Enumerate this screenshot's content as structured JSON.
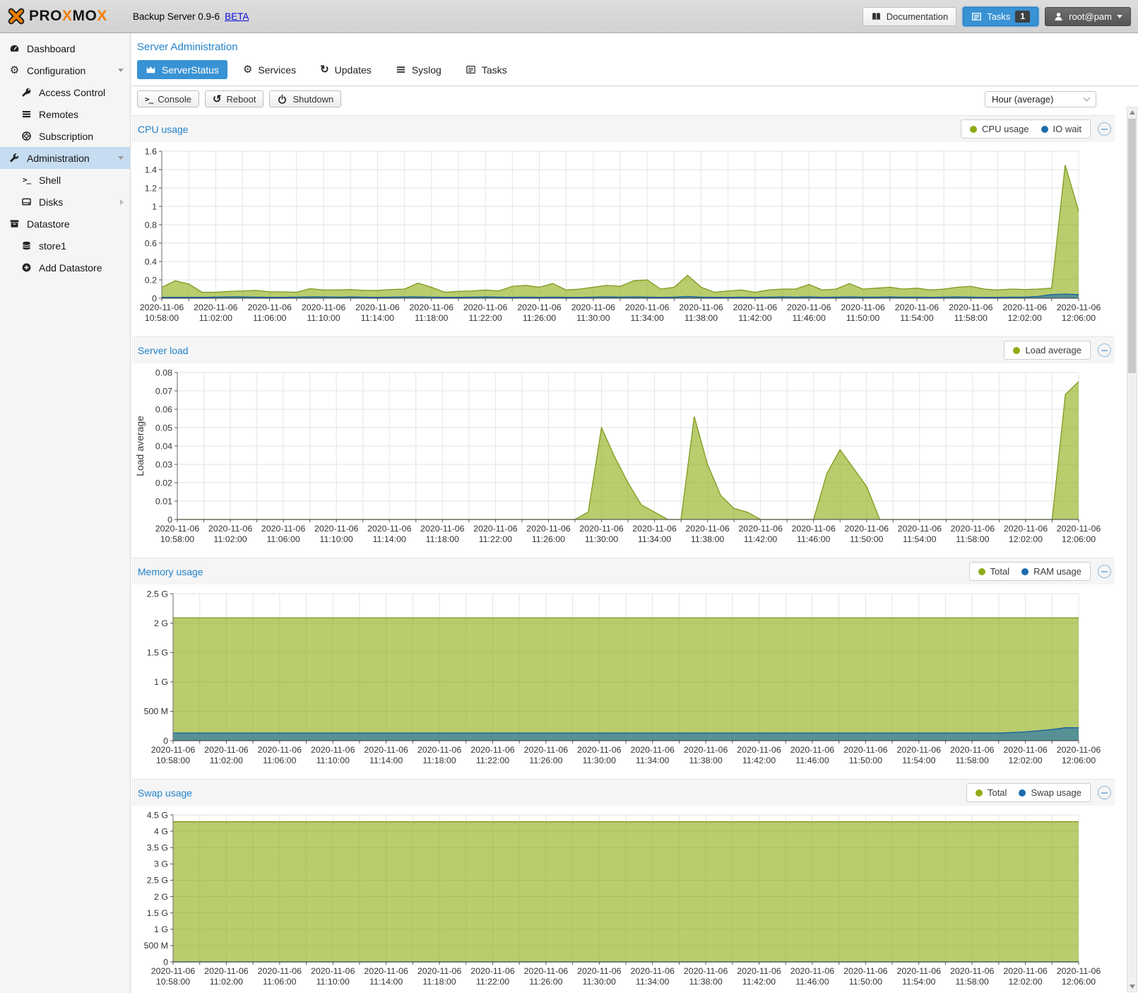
{
  "colors": {
    "accent": "#3892d4",
    "title_blue": "#2383ca",
    "sidebar_sel": "#c6dcf1"
  },
  "icons": {
    "terminal_prompt": ">_",
    "refresh": "↻",
    "undo": "↺",
    "gear": "⚙"
  },
  "header": {
    "logo_parts": [
      "PRO",
      "X",
      "MO",
      "X"
    ],
    "product": "Backup Server 0.9-6",
    "beta": "BETA",
    "documentation": "Documentation",
    "tasks": "Tasks",
    "tasks_badge": "1",
    "user": "root@pam"
  },
  "sidebar": {
    "items": [
      {
        "label": "Dashboard"
      },
      {
        "label": "Configuration"
      },
      {
        "label": "Access Control"
      },
      {
        "label": "Remotes"
      },
      {
        "label": "Subscription"
      },
      {
        "label": "Administration"
      },
      {
        "label": "Shell"
      },
      {
        "label": "Disks"
      },
      {
        "label": "Datastore"
      },
      {
        "label": "store1"
      },
      {
        "label": "Add Datastore"
      }
    ]
  },
  "main": {
    "title": "Server Administration",
    "tabs": [
      {
        "label": "ServerStatus"
      },
      {
        "label": "Services"
      },
      {
        "label": "Updates"
      },
      {
        "label": "Syslog"
      },
      {
        "label": "Tasks"
      }
    ],
    "toolbar": {
      "console": "Console",
      "reboot": "Reboot",
      "shutdown": "Shutdown",
      "range_select": "Hour (average)"
    }
  },
  "chart_data": [
    {
      "type": "area",
      "title": "CPU usage",
      "legend": [
        "CPU usage",
        "IO wait"
      ],
      "ylabel": "",
      "ylim": [
        0,
        1.6
      ],
      "grid": true,
      "legend_position": "top-right",
      "yticks": [
        {
          "v": 1.6,
          "label": "1.6"
        },
        {
          "v": 1.4,
          "label": "1.4"
        },
        {
          "v": 1.2,
          "label": "1.2"
        },
        {
          "v": 1,
          "label": "1"
        },
        {
          "v": 0.8,
          "label": "0.8"
        },
        {
          "v": 0.6,
          "label": "0.6"
        },
        {
          "v": 0.4,
          "label": "0.4"
        },
        {
          "v": 0.2,
          "label": "0.2"
        },
        {
          "v": 0,
          "label": "0"
        }
      ],
      "x_date": "2020-11-06",
      "x_times": [
        "10:58:00",
        "11:02:00",
        "11:06:00",
        "11:10:00",
        "11:14:00",
        "11:18:00",
        "11:22:00",
        "11:26:00",
        "11:30:00",
        "11:34:00",
        "11:38:00",
        "11:42:00",
        "11:46:00",
        "11:50:00",
        "11:54:00",
        "11:58:00",
        "12:02:00",
        "12:06:00"
      ],
      "series": [
        {
          "name": "CPU usage",
          "color": "#8eac15",
          "line": "#7e9a1d",
          "fill_opacity": 0.62,
          "values": [
            0.12,
            0.19,
            0.155,
            0.065,
            0.065,
            0.075,
            0.08,
            0.085,
            0.07,
            0.07,
            0.065,
            0.105,
            0.09,
            0.09,
            0.095,
            0.085,
            0.085,
            0.095,
            0.1,
            0.165,
            0.12,
            0.065,
            0.075,
            0.08,
            0.09,
            0.08,
            0.13,
            0.14,
            0.12,
            0.16,
            0.09,
            0.1,
            0.12,
            0.14,
            0.13,
            0.19,
            0.2,
            0.1,
            0.12,
            0.25,
            0.12,
            0.065,
            0.08,
            0.09,
            0.065,
            0.09,
            0.1,
            0.1,
            0.15,
            0.09,
            0.1,
            0.16,
            0.1,
            0.11,
            0.12,
            0.1,
            0.11,
            0.09,
            0.1,
            0.12,
            0.13,
            0.1,
            0.09,
            0.1,
            0.095,
            0.1,
            0.11,
            1.45,
            0.95
          ]
        },
        {
          "name": "IO wait",
          "color": "#1c6bac",
          "line": "#17629f",
          "fill_opacity": 0.62,
          "values": [
            0.01,
            0.01,
            0.01,
            0.01,
            0.012,
            0.015,
            0.015,
            0.012,
            0.01,
            0.01,
            0.012,
            0.015,
            0.015,
            0.012,
            0.015,
            0.012,
            0.01,
            0.012,
            0.015,
            0.015,
            0.012,
            0.01,
            0.01,
            0.012,
            0.015,
            0.012,
            0.01,
            0.012,
            0.01,
            0.012,
            0.01,
            0.01,
            0.012,
            0.015,
            0.012,
            0.015,
            0.012,
            0.01,
            0.012,
            0.02,
            0.012,
            0.01,
            0.01,
            0.012,
            0.01,
            0.012,
            0.015,
            0.012,
            0.015,
            0.01,
            0.012,
            0.015,
            0.012,
            0.012,
            0.015,
            0.012,
            0.012,
            0.01,
            0.012,
            0.015,
            0.012,
            0.01,
            0.01,
            0.012,
            0.012,
            0.02,
            0.04,
            0.045,
            0.04
          ]
        }
      ]
    },
    {
      "type": "area",
      "title": "Server load",
      "legend": [
        "Load average"
      ],
      "ylabel": "Load average",
      "ylim": [
        0,
        0.08
      ],
      "grid": true,
      "legend_position": "top-right",
      "yticks": [
        {
          "v": 0.08,
          "label": "0.08"
        },
        {
          "v": 0.07,
          "label": "0.07"
        },
        {
          "v": 0.06,
          "label": "0.06"
        },
        {
          "v": 0.05,
          "label": "0.05"
        },
        {
          "v": 0.04,
          "label": "0.04"
        },
        {
          "v": 0.03,
          "label": "0.03"
        },
        {
          "v": 0.02,
          "label": "0.02"
        },
        {
          "v": 0.01,
          "label": "0.01"
        },
        {
          "v": 0,
          "label": "0"
        }
      ],
      "x_date": "2020-11-06",
      "x_times": [
        "10:58:00",
        "11:02:00",
        "11:06:00",
        "11:10:00",
        "11:14:00",
        "11:18:00",
        "11:22:00",
        "11:26:00",
        "11:30:00",
        "11:34:00",
        "11:38:00",
        "11:42:00",
        "11:46:00",
        "11:50:00",
        "11:54:00",
        "11:58:00",
        "12:02:00",
        "12:06:00"
      ],
      "series": [
        {
          "name": "Load average",
          "color": "#8eac15",
          "line": "#7e9a1d",
          "fill_opacity": 0.62,
          "values": [
            0,
            0,
            0,
            0,
            0,
            0,
            0,
            0,
            0,
            0,
            0,
            0,
            0,
            0,
            0,
            0,
            0,
            0,
            0,
            0,
            0,
            0,
            0,
            0,
            0,
            0,
            0,
            0,
            0,
            0,
            0,
            0.004,
            0.05,
            0.034,
            0.02,
            0.008,
            0.004,
            0,
            0,
            0.056,
            0.03,
            0.013,
            0.006,
            0.004,
            0,
            0,
            0,
            0,
            0,
            0.025,
            0.038,
            0.028,
            0.018,
            0,
            0,
            0,
            0,
            0,
            0,
            0,
            0,
            0,
            0,
            0,
            0,
            0,
            0,
            0.068,
            0.075
          ]
        }
      ]
    },
    {
      "type": "area",
      "title": "Memory usage",
      "legend": [
        "Total",
        "RAM usage"
      ],
      "ylabel": "",
      "ylim": [
        0,
        2.5
      ],
      "grid": true,
      "legend_position": "top-right",
      "yticks": [
        {
          "v": 2.5,
          "label": "2.5 G"
        },
        {
          "v": 2,
          "label": "2 G"
        },
        {
          "v": 1.5,
          "label": "1.5 G"
        },
        {
          "v": 1,
          "label": "1 G"
        },
        {
          "v": 0.5,
          "label": "500 M"
        },
        {
          "v": 0,
          "label": "0"
        }
      ],
      "x_date": "2020-11-06",
      "x_times": [
        "10:58:00",
        "11:02:00",
        "11:06:00",
        "11:10:00",
        "11:14:00",
        "11:18:00",
        "11:22:00",
        "11:26:00",
        "11:30:00",
        "11:34:00",
        "11:38:00",
        "11:42:00",
        "11:46:00",
        "11:50:00",
        "11:54:00",
        "11:58:00",
        "12:02:00",
        "12:06:00"
      ],
      "series": [
        {
          "name": "Total",
          "color": "#8eac15",
          "line": "#7e9a1d",
          "fill_opacity": 0.62,
          "values": [
            2.09,
            2.09,
            2.09,
            2.09,
            2.09,
            2.09,
            2.09,
            2.09,
            2.09,
            2.09,
            2.09,
            2.09,
            2.09,
            2.09,
            2.09,
            2.09,
            2.09,
            2.09,
            2.09,
            2.09,
            2.09,
            2.09,
            2.09,
            2.09,
            2.09,
            2.09,
            2.09,
            2.09,
            2.09,
            2.09,
            2.09,
            2.09,
            2.09,
            2.09,
            2.09,
            2.09,
            2.09,
            2.09,
            2.09,
            2.09,
            2.09,
            2.09,
            2.09,
            2.09,
            2.09,
            2.09,
            2.09,
            2.09,
            2.09,
            2.09,
            2.09,
            2.09,
            2.09,
            2.09,
            2.09,
            2.09,
            2.09,
            2.09,
            2.09,
            2.09,
            2.09,
            2.09,
            2.09,
            2.09,
            2.09,
            2.09,
            2.09,
            2.09,
            2.09
          ]
        },
        {
          "name": "RAM usage",
          "color": "#1c6bac",
          "line": "#17629f",
          "fill_opacity": 0.62,
          "values": [
            0.13,
            0.13,
            0.13,
            0.13,
            0.13,
            0.13,
            0.13,
            0.13,
            0.13,
            0.13,
            0.13,
            0.13,
            0.13,
            0.13,
            0.13,
            0.13,
            0.13,
            0.13,
            0.13,
            0.13,
            0.13,
            0.13,
            0.13,
            0.13,
            0.13,
            0.13,
            0.13,
            0.13,
            0.13,
            0.13,
            0.13,
            0.13,
            0.13,
            0.13,
            0.13,
            0.13,
            0.13,
            0.13,
            0.13,
            0.13,
            0.13,
            0.13,
            0.13,
            0.13,
            0.13,
            0.13,
            0.13,
            0.13,
            0.13,
            0.13,
            0.13,
            0.13,
            0.13,
            0.13,
            0.13,
            0.13,
            0.13,
            0.13,
            0.13,
            0.13,
            0.13,
            0.13,
            0.13,
            0.14,
            0.15,
            0.17,
            0.19,
            0.22,
            0.22
          ]
        }
      ]
    },
    {
      "type": "area",
      "title": "Swap usage",
      "legend": [
        "Total",
        "Swap usage"
      ],
      "ylabel": "",
      "ylim": [
        0,
        4.5
      ],
      "grid": true,
      "legend_position": "top-right",
      "yticks": [
        {
          "v": 4.5,
          "label": "4.5 G"
        },
        {
          "v": 4,
          "label": "4 G"
        },
        {
          "v": 3.5,
          "label": "3.5 G"
        },
        {
          "v": 3,
          "label": "3 G"
        },
        {
          "v": 2.5,
          "label": "2.5 G"
        },
        {
          "v": 2,
          "label": "2 G"
        },
        {
          "v": 1.5,
          "label": "1.5 G"
        },
        {
          "v": 1,
          "label": "1 G"
        },
        {
          "v": 0.5,
          "label": "500 M"
        },
        {
          "v": 0,
          "label": "0"
        }
      ],
      "x_date": "2020-11-06",
      "x_times": [
        "10:58:00",
        "11:02:00",
        "11:06:00",
        "11:10:00",
        "11:14:00",
        "11:18:00",
        "11:22:00",
        "11:26:00",
        "11:30:00",
        "11:34:00",
        "11:38:00",
        "11:42:00",
        "11:46:00",
        "11:50:00",
        "11:54:00",
        "11:58:00",
        "12:02:00",
        "12:06:00"
      ],
      "series": [
        {
          "name": "Total",
          "color": "#8eac15",
          "line": "#7e9a1d",
          "fill_opacity": 0.62,
          "values": [
            4.29,
            4.29,
            4.29,
            4.29,
            4.29,
            4.29,
            4.29,
            4.29,
            4.29,
            4.29,
            4.29,
            4.29,
            4.29,
            4.29,
            4.29,
            4.29,
            4.29,
            4.29,
            4.29,
            4.29,
            4.29,
            4.29,
            4.29,
            4.29,
            4.29,
            4.29,
            4.29,
            4.29,
            4.29,
            4.29,
            4.29,
            4.29,
            4.29,
            4.29,
            4.29,
            4.29,
            4.29,
            4.29,
            4.29,
            4.29,
            4.29,
            4.29,
            4.29,
            4.29,
            4.29,
            4.29,
            4.29,
            4.29,
            4.29,
            4.29,
            4.29,
            4.29,
            4.29,
            4.29,
            4.29,
            4.29,
            4.29,
            4.29,
            4.29,
            4.29,
            4.29,
            4.29,
            4.29,
            4.29,
            4.29,
            4.29,
            4.29,
            4.29,
            4.29
          ]
        },
        {
          "name": "Swap usage",
          "color": "#1c6bac",
          "line": "#17629f",
          "fill_opacity": 0.62,
          "values": [
            0,
            0,
            0,
            0,
            0,
            0,
            0,
            0,
            0,
            0,
            0,
            0,
            0,
            0,
            0,
            0,
            0,
            0,
            0,
            0,
            0,
            0,
            0,
            0,
            0,
            0,
            0,
            0,
            0,
            0,
            0,
            0,
            0,
            0,
            0,
            0,
            0,
            0,
            0,
            0,
            0,
            0,
            0,
            0,
            0,
            0,
            0,
            0,
            0,
            0,
            0,
            0,
            0,
            0,
            0,
            0,
            0,
            0,
            0,
            0,
            0,
            0,
            0,
            0,
            0,
            0,
            0,
            0,
            0
          ]
        }
      ]
    }
  ]
}
